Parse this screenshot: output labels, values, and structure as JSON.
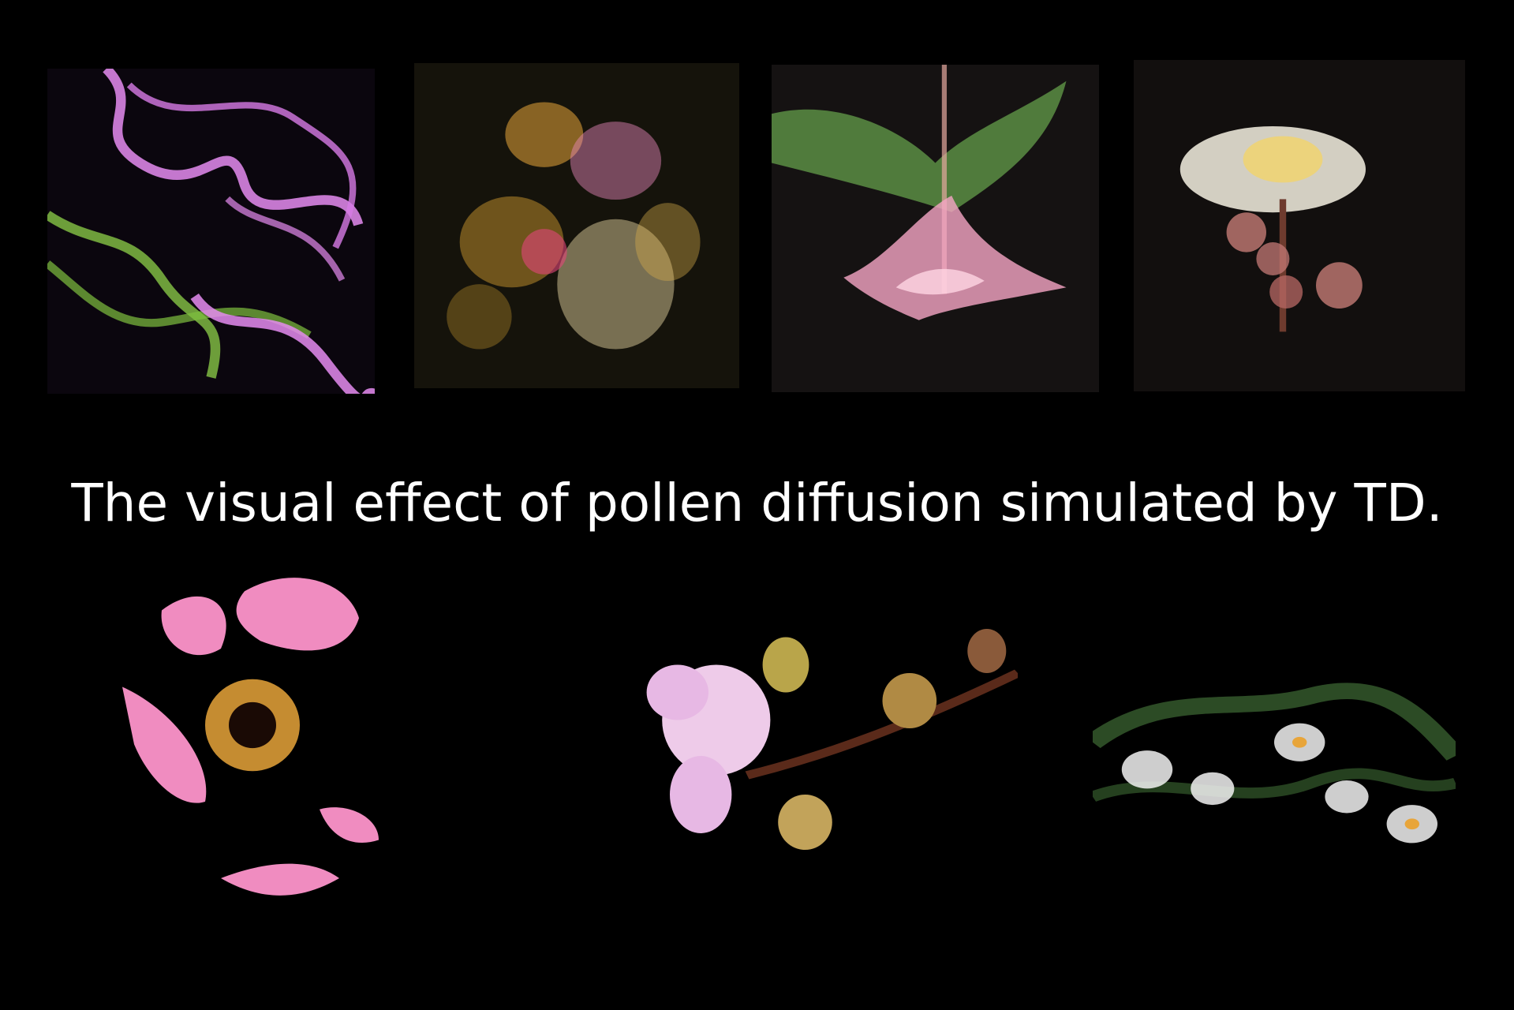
{
  "caption": "The visual effect of pollen diffusion simulated by TD.",
  "colors": {
    "background": "#000000",
    "caption_text": "#ffffff",
    "violet": "#e58cf0",
    "lime_green": "#8fd14a",
    "amber": "#e8a53a",
    "rose_pink": "#f08cc0",
    "cream": "#f6f1e2",
    "moss_green": "#3e6b34"
  },
  "images": [
    {
      "subject": "violet and green particle smoke swirls"
    },
    {
      "subject": "golden and pink pollen flower cluster"
    },
    {
      "subject": "green leaf and pink particle flower, upside down"
    },
    {
      "subject": "white particle blossom with pink buds"
    },
    {
      "subject": "pink petals dispersing with orange pollen core"
    },
    {
      "subject": "pink speckled orchid with green buds"
    },
    {
      "subject": "white particle flowers on green vine"
    }
  ]
}
